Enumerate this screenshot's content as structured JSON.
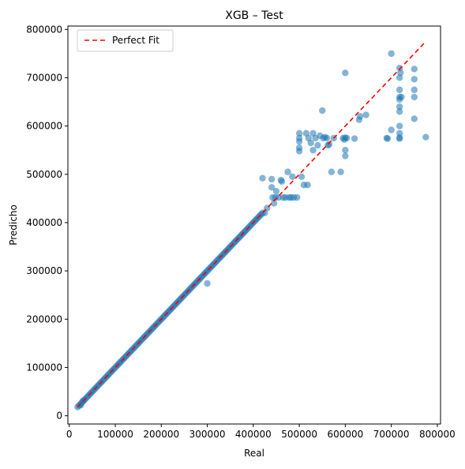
{
  "chart_data": {
    "type": "scatter",
    "title": "XGB – Test",
    "xlabel": "Real",
    "ylabel": "Predicho",
    "xlim": [
      -3000,
      807000
    ],
    "ylim": [
      -17000,
      807000
    ],
    "xticks": [
      0,
      100000,
      200000,
      300000,
      400000,
      500000,
      600000,
      700000,
      800000
    ],
    "yticks": [
      0,
      100000,
      200000,
      300000,
      400000,
      500000,
      600000,
      700000,
      800000
    ],
    "tick_labels": {
      "x": [
        "0",
        "100000",
        "200000",
        "300000",
        "400000",
        "500000",
        "600000",
        "700000",
        "800000"
      ],
      "y": [
        "0",
        "100000",
        "200000",
        "300000",
        "400000",
        "500000",
        "600000",
        "700000",
        "800000"
      ]
    },
    "grid": false,
    "legend": {
      "position": "top-left",
      "entries": [
        {
          "label": "Perfect Fit",
          "style": "dashed-line",
          "color": "#ff0000"
        }
      ]
    },
    "reference_line": {
      "name": "Perfect Fit",
      "x": [
        18000,
        775000
      ],
      "y": [
        18000,
        775000
      ],
      "color": "#ff0000",
      "style": "dashed"
    },
    "point_color": "#1f77b4",
    "point_alpha": 0.55,
    "diagonal_points": {
      "x_start": 18000,
      "x_end": 420000,
      "count": 140
    },
    "series": [
      {
        "points": [
          [
            25000,
            22000
          ],
          [
            30000,
            31000
          ],
          [
            300000,
            274000
          ],
          [
            420000,
            492000
          ],
          [
            425000,
            420000
          ],
          [
            430000,
            430000
          ],
          [
            440000,
            490000
          ],
          [
            440000,
            473000
          ],
          [
            442000,
            452000
          ],
          [
            445000,
            440000
          ],
          [
            448000,
            452000
          ],
          [
            450000,
            465000
          ],
          [
            455000,
            452000
          ],
          [
            460000,
            488000
          ],
          [
            462000,
            485000
          ],
          [
            465000,
            452000
          ],
          [
            470000,
            452000
          ],
          [
            475000,
            505000
          ],
          [
            478000,
            452000
          ],
          [
            482000,
            452000
          ],
          [
            485000,
            495000
          ],
          [
            488000,
            452000
          ],
          [
            495000,
            452000
          ],
          [
            500000,
            585000
          ],
          [
            500000,
            575000
          ],
          [
            500000,
            568000
          ],
          [
            500000,
            555000
          ],
          [
            500000,
            548000
          ],
          [
            505000,
            495000
          ],
          [
            510000,
            478000
          ],
          [
            515000,
            585000
          ],
          [
            518000,
            478000
          ],
          [
            520000,
            575000
          ],
          [
            525000,
            565000
          ],
          [
            530000,
            550000
          ],
          [
            530000,
            585000
          ],
          [
            535000,
            575000
          ],
          [
            540000,
            560000
          ],
          [
            545000,
            580000
          ],
          [
            550000,
            632000
          ],
          [
            552000,
            575000
          ],
          [
            556000,
            577000
          ],
          [
            560000,
            575000
          ],
          [
            562000,
            560000
          ],
          [
            565000,
            562000
          ],
          [
            570000,
            505000
          ],
          [
            575000,
            575000
          ],
          [
            590000,
            505000
          ],
          [
            595000,
            575000
          ],
          [
            598000,
            572000
          ],
          [
            600000,
            710000
          ],
          [
            600000,
            576000
          ],
          [
            600000,
            550000
          ],
          [
            600000,
            538000
          ],
          [
            603000,
            575000
          ],
          [
            620000,
            574000
          ],
          [
            630000,
            613000
          ],
          [
            632000,
            620000
          ],
          [
            645000,
            623000
          ],
          [
            690000,
            575000
          ],
          [
            692000,
            574000
          ],
          [
            700000,
            750000
          ],
          [
            700000,
            592000
          ],
          [
            718000,
            720000
          ],
          [
            718000,
            700000
          ],
          [
            718000,
            675000
          ],
          [
            718000,
            660000
          ],
          [
            718000,
            655000
          ],
          [
            718000,
            640000
          ],
          [
            718000,
            630000
          ],
          [
            718000,
            600000
          ],
          [
            718000,
            585000
          ],
          [
            718000,
            576000
          ],
          [
            718000,
            574000
          ],
          [
            720000,
            710000
          ],
          [
            722000,
            660000
          ],
          [
            750000,
            718000
          ],
          [
            750000,
            697000
          ],
          [
            750000,
            675000
          ],
          [
            750000,
            660000
          ],
          [
            750000,
            615000
          ],
          [
            775000,
            577000
          ]
        ]
      }
    ]
  }
}
